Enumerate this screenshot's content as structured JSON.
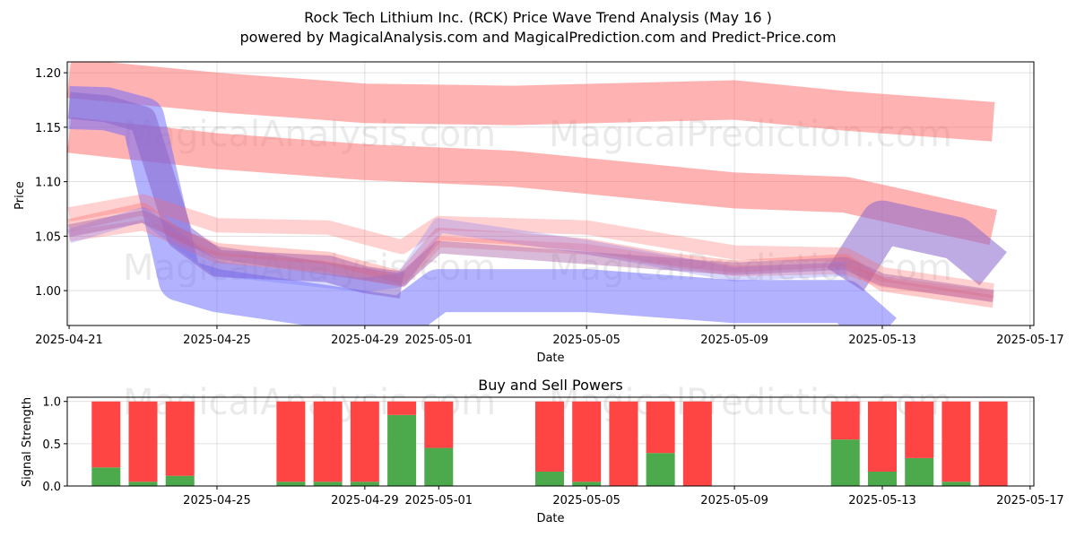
{
  "chart_data": [
    {
      "type": "area",
      "title": "Rock Tech Lithium Inc. (RCK) Price Wave Trend Analysis (May 16 )",
      "subtitle": "powered by MagicalAnalysis.com and MagicalPrediction.com and Predict-Price.com",
      "xlabel": "Date",
      "ylabel": "Price",
      "x_ticks": [
        "2025-04-21",
        "2025-04-25",
        "2025-04-29",
        "2025-05-01",
        "2025-05-05",
        "2025-05-09",
        "2025-05-13",
        "2025-05-17"
      ],
      "y_ticks": [
        "1.00",
        "1.05",
        "1.10",
        "1.15",
        "1.20"
      ],
      "xlim": [
        "2025-04-21",
        "2025-05-17"
      ],
      "ylim": [
        0.968,
        1.21
      ],
      "grid": true,
      "watermarks": [
        "MagicalAnalysis.com",
        "MagicalPrediction.com"
      ],
      "series": [
        {
          "color": "#ff6666",
          "points": [
            [
              "2025-04-21",
              1.195
            ],
            [
              "2025-04-25",
              1.182
            ],
            [
              "2025-04-29",
              1.172
            ],
            [
              "2025-05-03",
              1.17
            ],
            [
              "2025-05-09",
              1.175
            ],
            [
              "2025-05-12",
              1.165
            ],
            [
              "2025-05-16",
              1.155
            ]
          ]
        },
        {
          "color": "#ff6666",
          "points": [
            [
              "2025-04-21",
              1.143
            ],
            [
              "2025-04-25",
              1.128
            ],
            [
              "2025-04-29",
              1.118
            ],
            [
              "2025-05-03",
              1.112
            ],
            [
              "2025-05-09",
              1.092
            ],
            [
              "2025-05-12",
              1.088
            ],
            [
              "2025-05-16",
              1.058
            ]
          ]
        },
        {
          "color": "#6666ff",
          "points": [
            [
              "2025-04-21",
              1.168
            ],
            [
              "2025-04-22",
              1.167
            ],
            [
              "2025-04-23",
              1.158
            ],
            [
              "2025-04-24",
              1.01
            ],
            [
              "2025-04-25",
              1.0
            ],
            [
              "2025-04-29",
              0.98
            ],
            [
              "2025-04-30",
              0.975
            ],
            [
              "2025-05-01",
              1.0
            ],
            [
              "2025-05-05",
              1.0
            ],
            [
              "2025-05-09",
              0.99
            ],
            [
              "2025-05-12",
              0.99
            ],
            [
              "2025-05-13",
              0.96
            ]
          ]
        },
        {
          "color": "#8866cc",
          "points": [
            [
              "2025-04-21",
              1.17
            ],
            [
              "2025-04-22",
              1.167
            ],
            [
              "2025-04-23",
              1.157
            ],
            [
              "2025-04-24",
              1.05
            ],
            [
              "2025-04-25",
              1.025
            ],
            [
              "2025-04-28",
              1.02
            ],
            [
              "2025-04-29",
              1.01
            ],
            [
              "2025-04-30",
              1.005
            ]
          ]
        },
        {
          "color": "#8866cc",
          "points": [
            [
              "2025-05-12",
              1.01
            ],
            [
              "2025-05-13",
              1.063
            ],
            [
              "2025-05-15",
              1.048
            ],
            [
              "2025-05-16",
              1.02
            ]
          ]
        },
        {
          "color": "#ff6666",
          "points": [
            [
              "2025-04-21",
              1.06
            ],
            [
              "2025-04-23",
              1.075
            ],
            [
              "2025-04-24",
              1.05
            ],
            [
              "2025-04-25",
              1.038
            ],
            [
              "2025-04-28",
              1.03
            ],
            [
              "2025-04-30",
              1.012
            ],
            [
              "2025-05-01",
              1.052
            ],
            [
              "2025-05-03",
              1.048
            ],
            [
              "2025-05-05",
              1.042
            ],
            [
              "2025-05-07",
              1.03
            ],
            [
              "2025-05-09",
              1.022
            ],
            [
              "2025-05-12",
              1.028
            ],
            [
              "2025-05-13",
              1.005
            ],
            [
              "2025-05-16",
              0.99
            ]
          ]
        },
        {
          "color": "#ff6666",
          "points": [
            [
              "2025-04-21",
              1.05
            ],
            [
              "2025-04-23",
              1.06
            ],
            [
              "2025-04-25",
              1.03
            ],
            [
              "2025-04-28",
              1.022
            ],
            [
              "2025-04-30",
              1.008
            ],
            [
              "2025-05-01",
              1.045
            ],
            [
              "2025-05-05",
              1.038
            ],
            [
              "2025-05-09",
              1.018
            ],
            [
              "2025-05-12",
              1.02
            ],
            [
              "2025-05-13",
              1.008
            ],
            [
              "2025-05-16",
              0.995
            ]
          ]
        },
        {
          "color": "#ff6666",
          "points": [
            [
              "2025-04-21",
              1.07
            ],
            [
              "2025-04-23",
              1.082
            ],
            [
              "2025-04-25",
              1.06
            ],
            [
              "2025-04-28",
              1.058
            ],
            [
              "2025-04-30",
              1.04
            ],
            [
              "2025-05-01",
              1.062
            ],
            [
              "2025-05-05",
              1.058
            ],
            [
              "2025-05-09",
              1.035
            ],
            [
              "2025-05-12",
              1.033
            ],
            [
              "2025-05-13",
              1.015
            ],
            [
              "2025-05-16",
              1.0
            ]
          ]
        },
        {
          "color": "#6666ff",
          "points": [
            [
              "2025-04-21",
              1.05
            ],
            [
              "2025-04-23",
              1.07
            ],
            [
              "2025-04-25",
              1.02
            ],
            [
              "2025-04-29",
              1.005
            ],
            [
              "2025-04-30",
              1.01
            ],
            [
              "2025-05-01",
              1.06
            ],
            [
              "2025-05-05",
              1.04
            ],
            [
              "2025-05-09",
              1.015
            ],
            [
              "2025-05-12",
              1.02
            ]
          ]
        },
        {
          "color": "#aa66aa",
          "points": [
            [
              "2025-04-21",
              1.055
            ],
            [
              "2025-04-23",
              1.068
            ],
            [
              "2025-04-25",
              1.035
            ],
            [
              "2025-04-29",
              1.015
            ],
            [
              "2025-04-30",
              1.01
            ],
            [
              "2025-05-01",
              1.04
            ],
            [
              "2025-05-05",
              1.03
            ],
            [
              "2025-05-09",
              1.02
            ],
            [
              "2025-05-12",
              1.025
            ],
            [
              "2025-05-13",
              1.01
            ],
            [
              "2025-05-16",
              0.995
            ]
          ]
        }
      ]
    },
    {
      "type": "bar",
      "title": "Buy and Sell Powers",
      "xlabel": "Date",
      "ylabel": "Signal Strength",
      "x_ticks": [
        "2025-04-25",
        "2025-04-29",
        "2025-05-01",
        "2025-05-05",
        "2025-05-09",
        "2025-05-13",
        "2025-05-17"
      ],
      "y_ticks": [
        "0.0",
        "0.5",
        "1.0"
      ],
      "xlim": [
        "2025-04-21",
        "2025-05-17"
      ],
      "ylim": [
        0,
        1.05
      ],
      "grid": true,
      "categories": [
        "2025-04-22",
        "2025-04-23",
        "2025-04-24",
        "2025-04-27",
        "2025-04-28",
        "2025-04-29",
        "2025-04-30",
        "2025-05-01",
        "2025-05-04",
        "2025-05-05",
        "2025-05-06",
        "2025-05-07",
        "2025-05-08",
        "2025-05-12",
        "2025-05-13",
        "2025-05-14",
        "2025-05-15",
        "2025-05-16"
      ],
      "series": [
        {
          "color": "#4caa4c",
          "values": [
            0.22,
            0.05,
            0.12,
            0.05,
            0.05,
            0.05,
            0.84,
            0.45,
            0.17,
            0.05,
            0.0,
            0.39,
            0.0,
            0.55,
            0.17,
            0.33,
            0.05,
            0.0
          ]
        },
        {
          "color": "#ff4444",
          "values": [
            0.78,
            0.95,
            0.88,
            0.95,
            0.95,
            0.95,
            0.16,
            0.55,
            0.83,
            0.95,
            1.0,
            0.61,
            1.0,
            0.45,
            0.83,
            0.67,
            0.95,
            1.0
          ]
        }
      ]
    }
  ]
}
